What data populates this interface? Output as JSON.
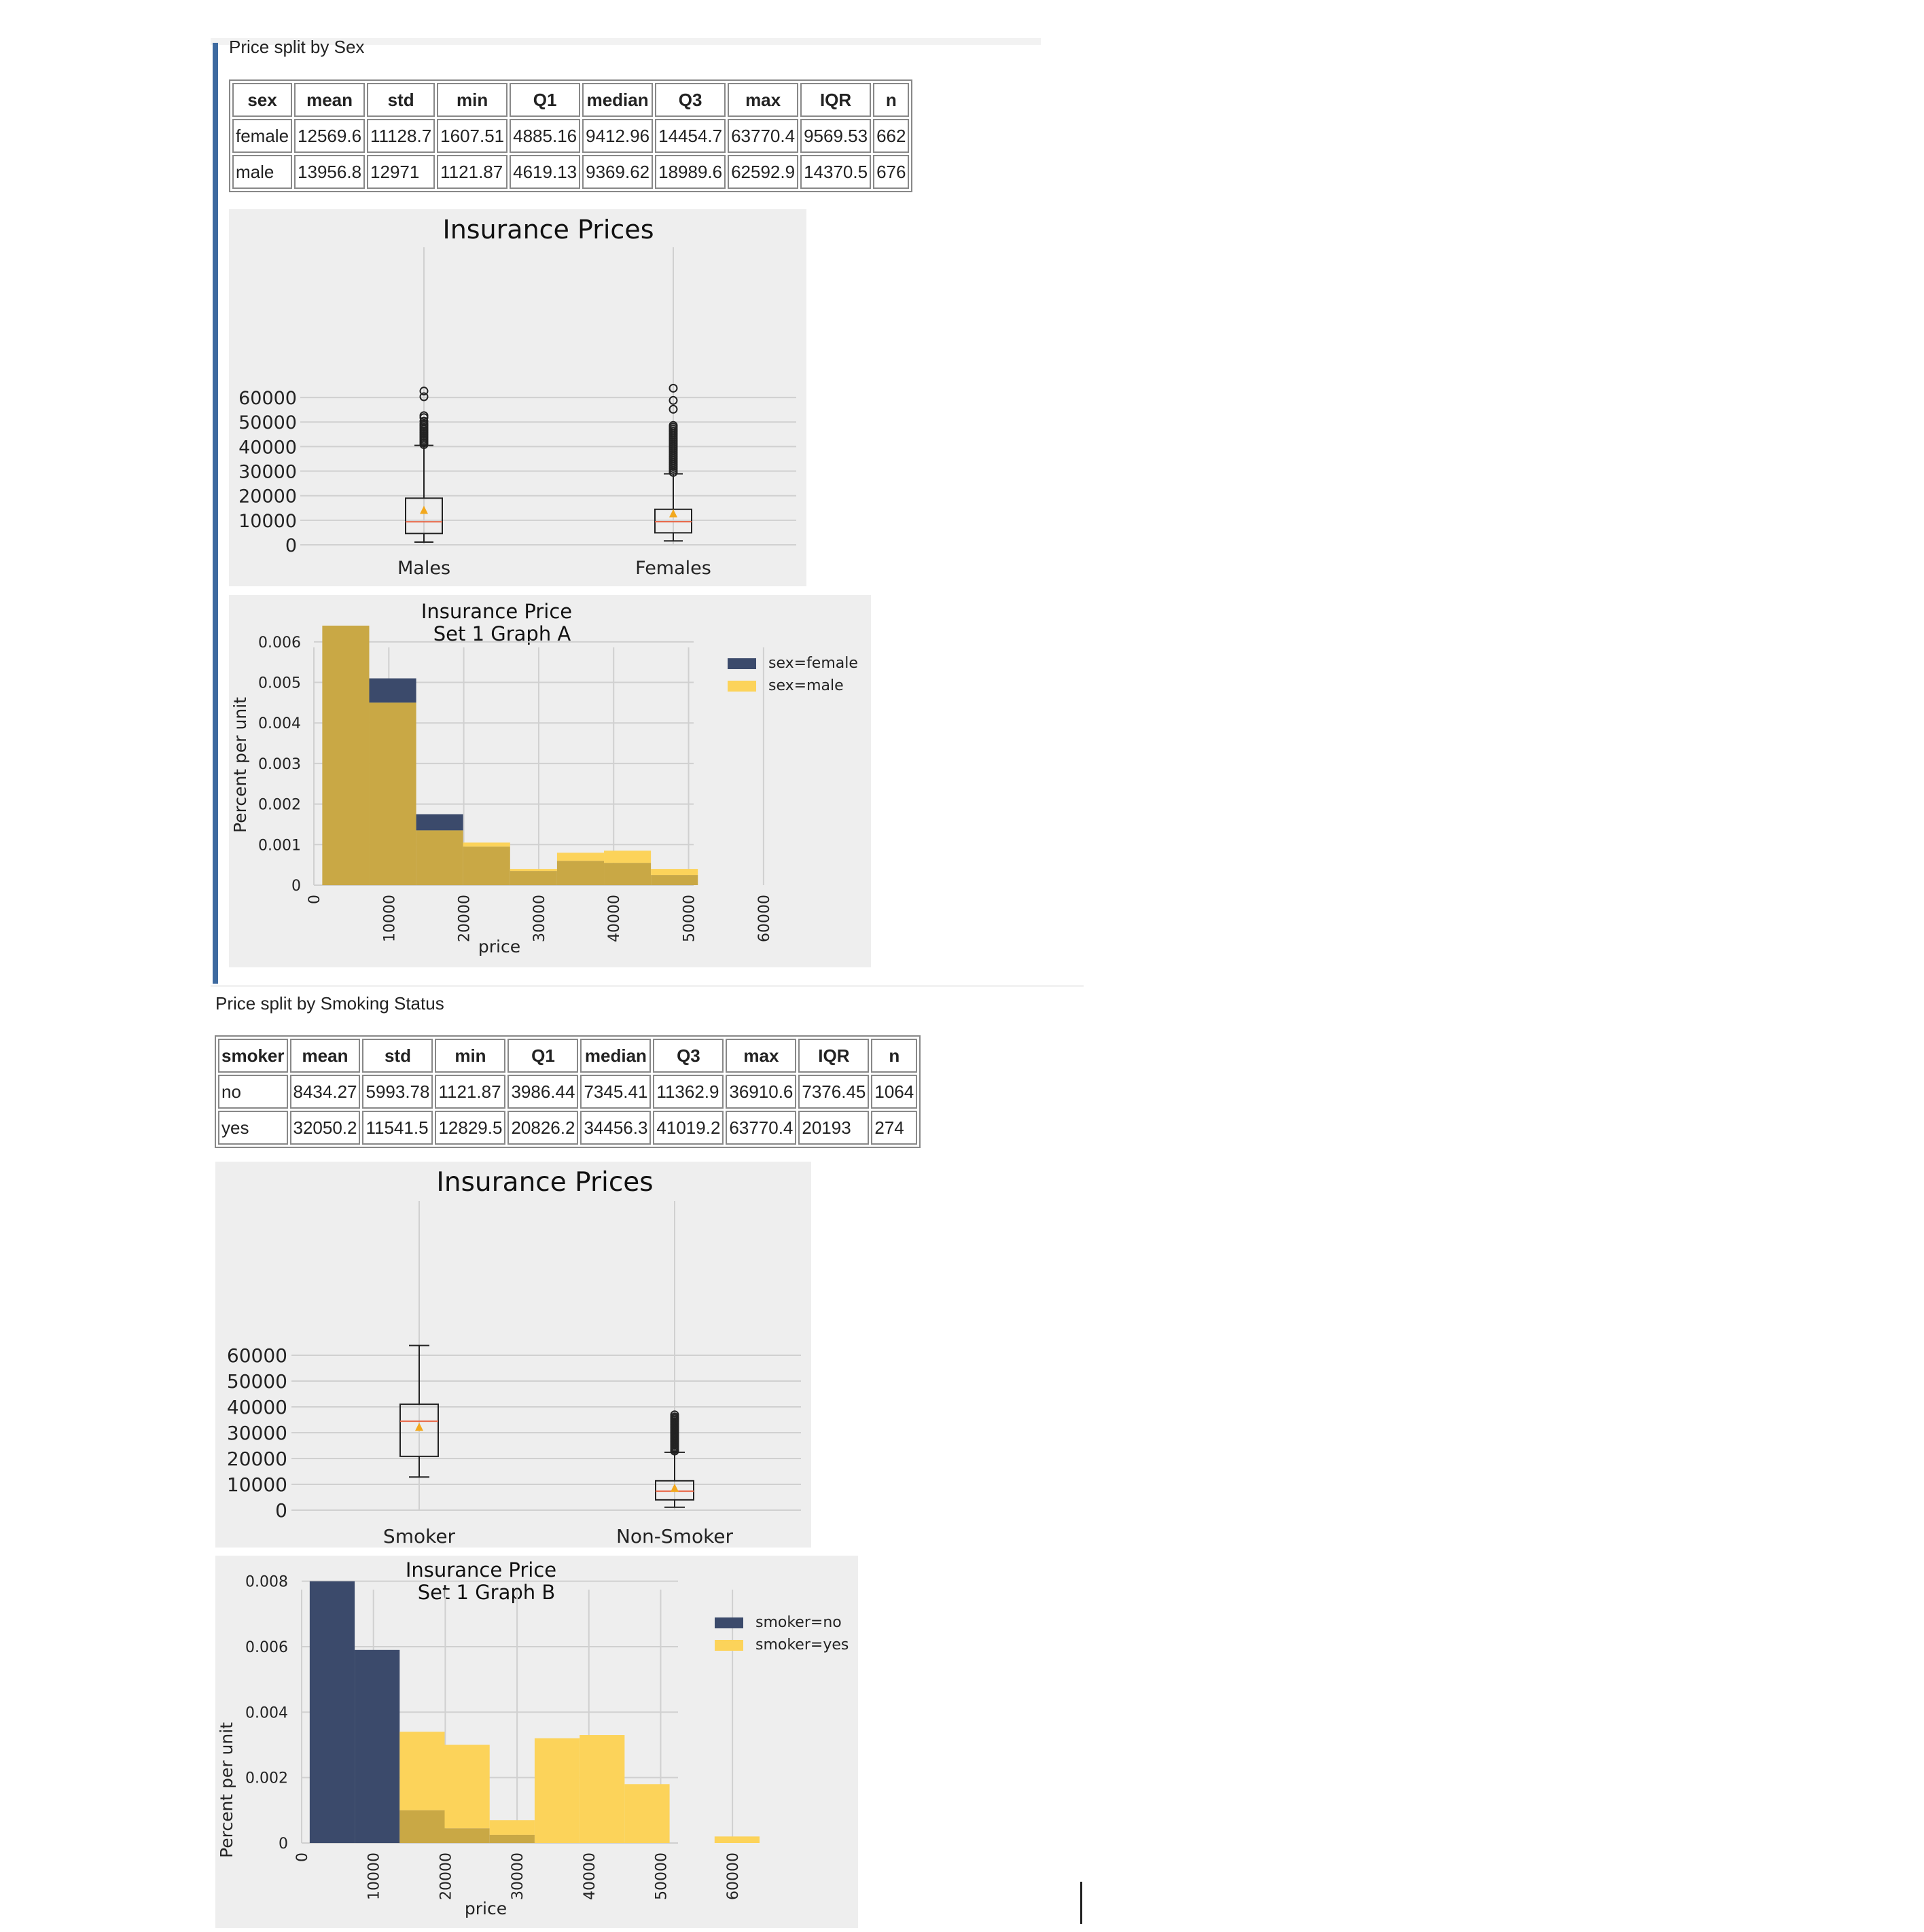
{
  "sections": {
    "sex": {
      "title": "Price split by Sex",
      "table": {
        "columns": [
          "sex",
          "mean",
          "std",
          "min",
          "Q1",
          "median",
          "Q3",
          "max",
          "IQR",
          "n"
        ],
        "rows": [
          [
            "female",
            "12569.6",
            "11128.7",
            "1607.51",
            "4885.16",
            "9412.96",
            "14454.7",
            "63770.4",
            "9569.53",
            "662"
          ],
          [
            "male",
            "13956.8",
            "12971",
            "1121.87",
            "4619.13",
            "9369.62",
            "18989.6",
            "62592.9",
            "14370.5",
            "676"
          ]
        ]
      }
    },
    "smoker": {
      "title": "Price split by Smoking Status",
      "table": {
        "columns": [
          "smoker",
          "mean",
          "std",
          "min",
          "Q1",
          "median",
          "Q3",
          "max",
          "IQR",
          "n"
        ],
        "rows": [
          [
            "no",
            "8434.27",
            "5993.78",
            "1121.87",
            "3986.44",
            "7345.41",
            "11362.9",
            "36910.6",
            "7376.45",
            "1064"
          ],
          [
            "yes",
            "32050.2",
            "11541.5",
            "12829.5",
            "20826.2",
            "34456.3",
            "41019.2",
            "63770.4",
            "20193",
            "274"
          ]
        ]
      }
    }
  },
  "colors": {
    "panel_bg": "#eeeeee",
    "grid": "#d0d0d0",
    "dark_blue": "#3b4a6b",
    "gold": "#fcd35a",
    "overlap": "#c9a845",
    "median_line": "#e8694a",
    "mean_marker": "#f2a81d",
    "accent_bar": "#3d6aa0"
  },
  "chart_data": [
    {
      "type": "boxplot",
      "title": "Insurance Prices",
      "categories": [
        "Males",
        "Females"
      ],
      "ylim": [
        0,
        65000
      ],
      "yticks": [
        0,
        10000,
        20000,
        30000,
        40000,
        50000,
        60000
      ],
      "grid": true,
      "boxes": [
        {
          "name": "Males",
          "whisker_low": 1121.87,
          "q1": 4619.13,
          "median": 9369.62,
          "mean": 13956.8,
          "q3": 18989.6,
          "whisker_high": 40500,
          "outliers": [
            40800,
            41500,
            42200,
            42900,
            43600,
            44300,
            45000,
            45700,
            46400,
            47100,
            47800,
            48500,
            49200,
            50300,
            51800,
            52600,
            60300,
            62600
          ]
        },
        {
          "name": "Females",
          "whisker_low": 1607.51,
          "q1": 4885.16,
          "median": 9412.96,
          "mean": 12569.6,
          "q3": 14454.7,
          "whisker_high": 28900,
          "outliers": [
            29500,
            30300,
            31100,
            31900,
            32700,
            33500,
            34300,
            35100,
            35900,
            36700,
            37500,
            38300,
            39100,
            39900,
            40700,
            41500,
            42300,
            43100,
            43900,
            44700,
            45500,
            46300,
            47100,
            47900,
            48600,
            55200,
            58800,
            63770.4
          ]
        }
      ]
    },
    {
      "type": "bar",
      "title": "Insurance Price\nSet 1 Graph A",
      "xlabel": "price",
      "ylabel": "Percent per unit",
      "xlim": [
        0,
        65000
      ],
      "ylim": [
        0,
        0.0065
      ],
      "xticks": [
        0,
        10000,
        20000,
        30000,
        40000,
        50000,
        60000
      ],
      "yticks": [
        0,
        0.001,
        0.002,
        0.003,
        0.004,
        0.005,
        0.006
      ],
      "legend": "top-right",
      "bin_width": 6264.9,
      "bin_starts": [
        1121.87,
        7386.8,
        13651.7,
        19916.6,
        26181.5,
        32446.4,
        38711.3,
        44976.2,
        51241.1,
        57506.0
      ],
      "series": [
        {
          "name": "sex=female",
          "values": [
            0.0064,
            0.0051,
            0.00175,
            0.00095,
            0.00035,
            0.0006,
            0.00055,
            0.00025,
            0,
            0
          ]
        },
        {
          "name": "sex=male",
          "values": [
            0.0064,
            0.0045,
            0.00135,
            0.00105,
            0.0004,
            0.0008,
            0.00085,
            0.0004,
            0,
            0
          ]
        }
      ]
    },
    {
      "type": "boxplot",
      "title": "Insurance Prices",
      "categories": [
        "Smoker",
        "Non-Smoker"
      ],
      "ylim": [
        0,
        65000
      ],
      "yticks": [
        0,
        10000,
        20000,
        30000,
        40000,
        50000,
        60000
      ],
      "grid": true,
      "boxes": [
        {
          "name": "Smoker",
          "whisker_low": 12829.5,
          "q1": 20826.2,
          "median": 34456.3,
          "mean": 32050.2,
          "q3": 41019.2,
          "whisker_high": 63770.4,
          "outliers": []
        },
        {
          "name": "Non-Smoker",
          "whisker_low": 1121.87,
          "q1": 3986.44,
          "median": 7345.41,
          "mean": 8434.27,
          "q3": 11362.9,
          "whisker_high": 22400,
          "outliers": [
            22900,
            23500,
            24100,
            24700,
            25300,
            25900,
            26500,
            27100,
            27700,
            28300,
            28900,
            29500,
            30100,
            30700,
            31300,
            31900,
            32500,
            33100,
            33700,
            34300,
            34900,
            35500,
            36100,
            36910.6
          ]
        }
      ]
    },
    {
      "type": "bar",
      "title": "Insurance Price\nSet 1 Graph B",
      "xlabel": "price",
      "ylabel": "Percent per unit",
      "xlim": [
        0,
        65000
      ],
      "ylim": [
        0,
        0.0082
      ],
      "xticks": [
        0,
        10000,
        20000,
        30000,
        40000,
        50000,
        60000
      ],
      "yticks": [
        0,
        0.002,
        0.004,
        0.006,
        0.008
      ],
      "legend": "top-right",
      "bin_width": 6264.9,
      "bin_starts": [
        1121.87,
        7386.8,
        13651.7,
        19916.6,
        26181.5,
        32446.4,
        38711.3,
        44976.2,
        51241.1,
        57506.0
      ],
      "series": [
        {
          "name": "smoker=no",
          "values": [
            0.008,
            0.0059,
            0.001,
            0.00045,
            0.00025,
            0,
            0,
            0,
            0,
            0
          ]
        },
        {
          "name": "smoker=yes",
          "values": [
            0,
            0,
            0.0034,
            0.003,
            0.0007,
            0.0032,
            0.0033,
            0.0018,
            0,
            0.0002
          ]
        }
      ]
    }
  ]
}
